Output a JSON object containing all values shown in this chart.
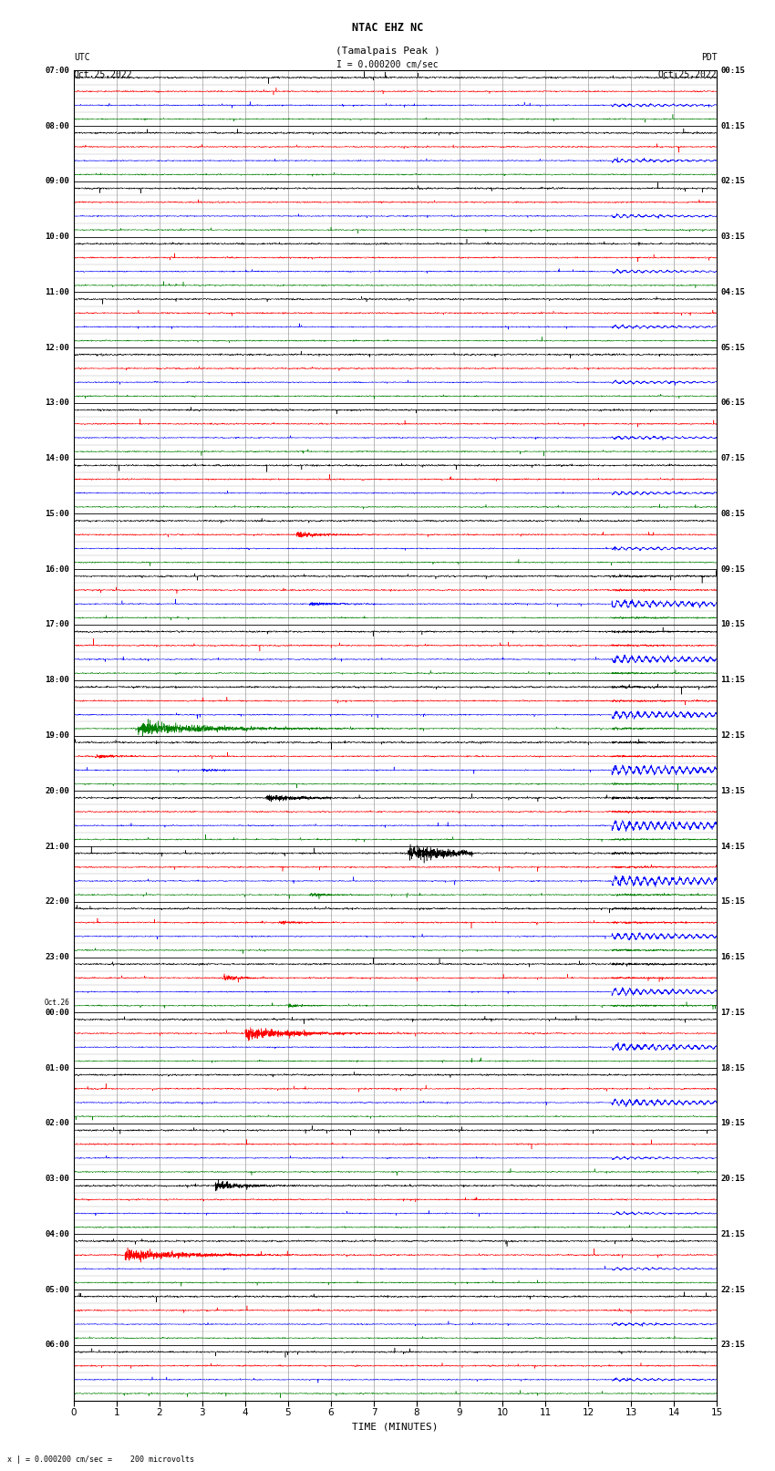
{
  "title_line1": "NTAC EHZ NC",
  "title_line2": "(Tamalpais Peak )",
  "scale_label": "I = 0.000200 cm/sec",
  "left_header_line1": "UTC",
  "left_header_line2": "Oct.25,2022",
  "right_header_line1": "PDT",
  "right_header_line2": "Oct.25,2022",
  "bottom_label": "TIME (MINUTES)",
  "bottom_note": "x | = 0.000200 cm/sec =    200 microvolts",
  "x_min": 0,
  "x_max": 15,
  "x_ticks": [
    0,
    1,
    2,
    3,
    4,
    5,
    6,
    7,
    8,
    9,
    10,
    11,
    12,
    13,
    14,
    15
  ],
  "left_times": [
    "07:00",
    "08:00",
    "09:00",
    "10:00",
    "11:00",
    "12:00",
    "13:00",
    "14:00",
    "15:00",
    "16:00",
    "17:00",
    "18:00",
    "19:00",
    "20:00",
    "21:00",
    "22:00",
    "23:00",
    "Oct.26\n00:00",
    "01:00",
    "02:00",
    "03:00",
    "04:00",
    "05:00",
    "06:00"
  ],
  "right_times": [
    "00:15",
    "01:15",
    "02:15",
    "03:15",
    "04:15",
    "05:15",
    "06:15",
    "07:15",
    "08:15",
    "09:15",
    "10:15",
    "11:15",
    "12:15",
    "13:15",
    "14:15",
    "15:15",
    "16:15",
    "17:15",
    "18:15",
    "19:15",
    "20:15",
    "21:15",
    "22:15",
    "23:15"
  ],
  "trace_colors": [
    "black",
    "red",
    "blue",
    "green"
  ],
  "bg_color": "#ffffff",
  "grid_color": "#888888",
  "grid_linewidth": 0.4,
  "trace_linewidth": 0.35,
  "event_col": 12.55
}
